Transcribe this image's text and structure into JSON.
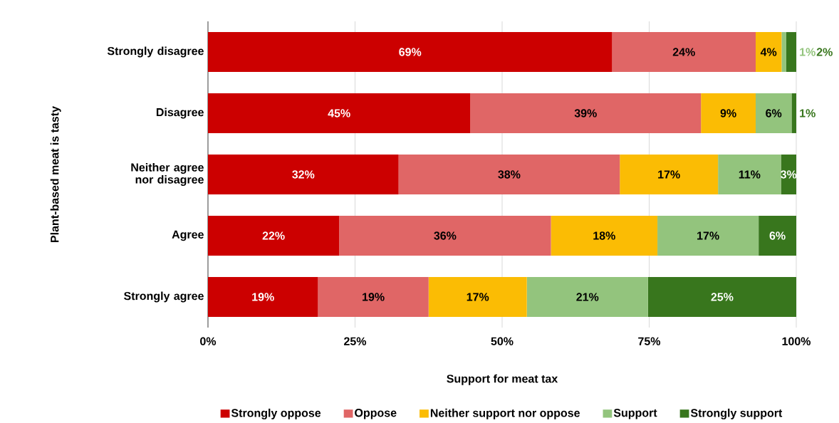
{
  "chart_data": {
    "type": "bar",
    "orientation": "horizontal",
    "stacked": true,
    "categories": [
      "Strongly disagree",
      "Disagree",
      "Neither agree nor disagree",
      "Agree",
      "Strongly agree"
    ],
    "xlabel": "Support for meat tax",
    "ylabel": "Plant-based meat is tasty",
    "xlim": [
      0,
      100
    ],
    "xticks": [
      {
        "value": 0,
        "label": "0%"
      },
      {
        "value": 25,
        "label": "25%"
      },
      {
        "value": 50,
        "label": "50%"
      },
      {
        "value": 75,
        "label": "75%"
      },
      {
        "value": 100,
        "label": "100%"
      }
    ],
    "grid": "x",
    "legend": "bottom",
    "series": [
      {
        "name": "Strongly oppose",
        "color": "#cc0000",
        "values": [
          68.7,
          44.6,
          32.4,
          22.3,
          18.7
        ],
        "value_labels": [
          "69%",
          "45%",
          "32%",
          "22%",
          "19%"
        ]
      },
      {
        "name": "Oppose",
        "color": "#e06666",
        "values": [
          24.4,
          39.2,
          37.6,
          36.0,
          18.8
        ],
        "value_labels": [
          "24%",
          "39%",
          "38%",
          "36%",
          "19%"
        ]
      },
      {
        "name": "Neither support nor oppose",
        "color": "#fbbc04",
        "values": [
          4.4,
          9.3,
          16.7,
          18.1,
          16.7
        ],
        "value_labels": [
          "4%",
          "9%",
          "17%",
          "18%",
          "17%"
        ]
      },
      {
        "name": "Support",
        "color": "#93c47d",
        "values": [
          0.8,
          6.1,
          10.7,
          17.2,
          20.6
        ],
        "value_labels": [
          "1%",
          "6%",
          "11%",
          "17%",
          "21%"
        ]
      },
      {
        "name": "Strongly support",
        "color": "#38761d",
        "values": [
          1.7,
          0.8,
          2.6,
          6.4,
          25.2
        ],
        "value_labels": [
          "2%",
          "1%",
          "3%",
          "6%",
          "25%"
        ]
      }
    ]
  }
}
